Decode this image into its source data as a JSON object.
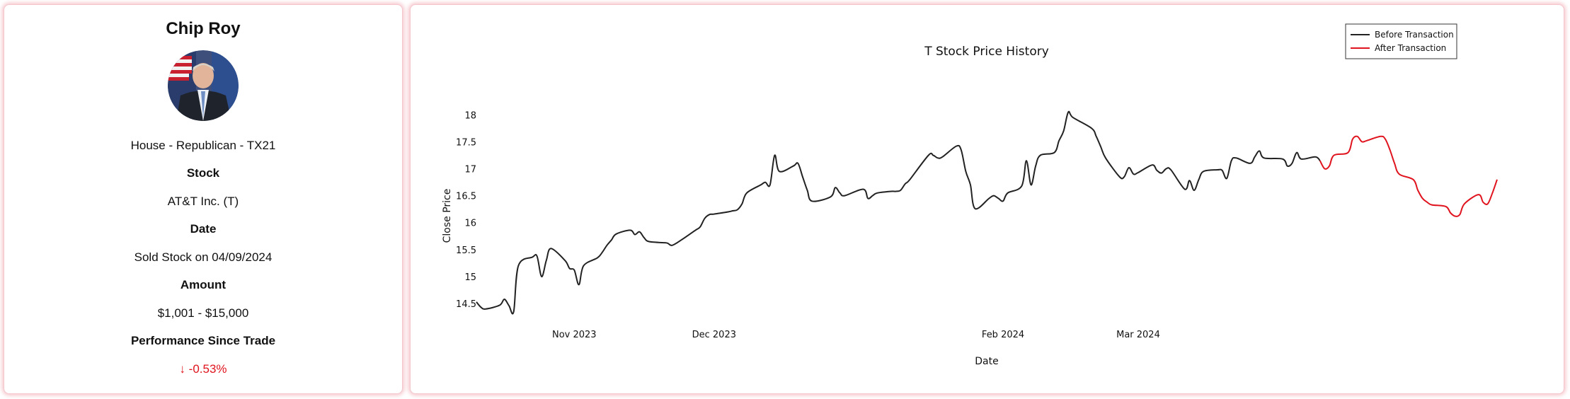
{
  "profile": {
    "name": "Chip Roy",
    "affiliation": "House - Republican - TX21",
    "stock_heading": "Stock",
    "stock_value": "AT&T Inc. (T)",
    "date_heading": "Date",
    "date_value": "Sold Stock on 04/09/2024",
    "amount_heading": "Amount",
    "amount_value": "$1,001 - $15,000",
    "performance_heading": "Performance Since Trade",
    "performance_value": "↓ -0.53%",
    "performance_color": "#e0141e"
  },
  "chart_data": {
    "type": "line",
    "title": "T Stock Price History",
    "xlabel": "Date",
    "ylabel": "Close Price",
    "ylim": [
      14.37,
      18.24
    ],
    "yticks": [
      14.5,
      15,
      15.5,
      16,
      16.5,
      17,
      17.5,
      18
    ],
    "xticks": [
      {
        "label": "Nov 2023",
        "date": "2023-11-01"
      },
      {
        "label": "Dec 2023",
        "date": "2023-12-01"
      },
      {
        "label": "Feb 2024",
        "date": "2024-02-01"
      },
      {
        "label": "Mar 2024",
        "date": "2024-03-01"
      }
    ],
    "grid": false,
    "legend_position": "top-right",
    "series": [
      {
        "name": "Before Transaction",
        "color": "#222222",
        "points": [
          [
            "2023-10-11",
            14.53
          ],
          [
            "2023-10-12",
            14.43
          ],
          [
            "2023-10-13",
            14.4
          ],
          [
            "2023-10-16",
            14.47
          ],
          [
            "2023-10-17",
            14.58
          ],
          [
            "2023-10-18",
            14.46
          ],
          [
            "2023-10-19",
            14.35
          ],
          [
            "2023-10-20",
            15.2
          ],
          [
            "2023-10-23",
            15.36
          ],
          [
            "2023-10-24",
            15.38
          ],
          [
            "2023-10-25",
            15.0
          ],
          [
            "2023-10-26",
            15.3
          ],
          [
            "2023-10-27",
            15.52
          ],
          [
            "2023-10-30",
            15.3
          ],
          [
            "2023-10-31",
            15.15
          ],
          [
            "2023-11-01",
            15.12
          ],
          [
            "2023-11-02",
            14.85
          ],
          [
            "2023-11-03",
            15.2
          ],
          [
            "2023-11-06",
            15.35
          ],
          [
            "2023-11-07",
            15.45
          ],
          [
            "2023-11-08",
            15.58
          ],
          [
            "2023-11-09",
            15.68
          ],
          [
            "2023-11-10",
            15.79
          ],
          [
            "2023-11-13",
            15.86
          ],
          [
            "2023-11-14",
            15.78
          ],
          [
            "2023-11-15",
            15.83
          ],
          [
            "2023-11-16",
            15.72
          ],
          [
            "2023-11-17",
            15.65
          ],
          [
            "2023-11-20",
            15.63
          ],
          [
            "2023-11-21",
            15.62
          ],
          [
            "2023-11-22",
            15.58
          ],
          [
            "2023-11-24",
            15.68
          ],
          [
            "2023-11-27",
            15.86
          ],
          [
            "2023-11-28",
            15.92
          ],
          [
            "2023-11-29",
            16.08
          ],
          [
            "2023-11-30",
            16.15
          ],
          [
            "2023-12-01",
            16.16
          ],
          [
            "2023-12-04",
            16.2
          ],
          [
            "2023-12-05",
            16.22
          ],
          [
            "2023-12-06",
            16.24
          ],
          [
            "2023-12-07",
            16.35
          ],
          [
            "2023-12-08",
            16.55
          ],
          [
            "2023-12-11",
            16.7
          ],
          [
            "2023-12-12",
            16.75
          ],
          [
            "2023-12-13",
            16.7
          ],
          [
            "2023-12-14",
            17.25
          ],
          [
            "2023-12-15",
            16.95
          ],
          [
            "2023-12-18",
            17.05
          ],
          [
            "2023-12-19",
            17.1
          ],
          [
            "2023-12-20",
            16.85
          ],
          [
            "2023-12-21",
            16.6
          ],
          [
            "2023-12-22",
            16.4
          ],
          [
            "2023-12-26",
            16.48
          ],
          [
            "2023-12-27",
            16.65
          ],
          [
            "2023-12-28",
            16.55
          ],
          [
            "2023-12-29",
            16.5
          ],
          [
            "2024-01-02",
            16.62
          ],
          [
            "2024-01-03",
            16.45
          ],
          [
            "2024-01-04",
            16.5
          ],
          [
            "2024-01-05",
            16.55
          ],
          [
            "2024-01-08",
            16.58
          ],
          [
            "2024-01-09",
            16.58
          ],
          [
            "2024-01-10",
            16.6
          ],
          [
            "2024-01-11",
            16.72
          ],
          [
            "2024-01-12",
            16.8
          ],
          [
            "2024-01-16",
            17.25
          ],
          [
            "2024-01-17",
            17.25
          ],
          [
            "2024-01-18",
            17.2
          ],
          [
            "2024-01-19",
            17.22
          ],
          [
            "2024-01-22",
            17.42
          ],
          [
            "2024-01-23",
            17.35
          ],
          [
            "2024-01-24",
            16.95
          ],
          [
            "2024-01-25",
            16.7
          ],
          [
            "2024-01-26",
            16.26
          ],
          [
            "2024-01-29",
            16.45
          ],
          [
            "2024-01-30",
            16.5
          ],
          [
            "2024-01-31",
            16.45
          ],
          [
            "2024-02-01",
            16.4
          ],
          [
            "2024-02-02",
            16.55
          ],
          [
            "2024-02-05",
            16.68
          ],
          [
            "2024-02-06",
            17.15
          ],
          [
            "2024-02-07",
            16.7
          ],
          [
            "2024-02-08",
            17.05
          ],
          [
            "2024-02-09",
            17.25
          ],
          [
            "2024-02-12",
            17.3
          ],
          [
            "2024-02-13",
            17.52
          ],
          [
            "2024-02-14",
            17.7
          ],
          [
            "2024-02-15",
            18.05
          ],
          [
            "2024-02-16",
            17.95
          ],
          [
            "2024-02-20",
            17.75
          ],
          [
            "2024-02-21",
            17.6
          ],
          [
            "2024-02-22",
            17.4
          ],
          [
            "2024-02-23",
            17.2
          ],
          [
            "2024-02-26",
            16.85
          ],
          [
            "2024-02-27",
            16.85
          ],
          [
            "2024-02-28",
            17.02
          ],
          [
            "2024-02-29",
            16.9
          ],
          [
            "2024-03-01",
            16.93
          ],
          [
            "2024-03-04",
            17.07
          ],
          [
            "2024-03-05",
            16.97
          ],
          [
            "2024-03-06",
            16.92
          ],
          [
            "2024-03-07",
            17.0
          ],
          [
            "2024-03-08",
            16.98
          ],
          [
            "2024-03-11",
            16.62
          ],
          [
            "2024-03-12",
            16.78
          ],
          [
            "2024-03-13",
            16.6
          ],
          [
            "2024-03-14",
            16.8
          ],
          [
            "2024-03-15",
            16.95
          ],
          [
            "2024-03-18",
            16.98
          ],
          [
            "2024-03-19",
            16.97
          ],
          [
            "2024-03-20",
            16.82
          ],
          [
            "2024-03-21",
            17.15
          ],
          [
            "2024-03-22",
            17.2
          ],
          [
            "2024-03-25",
            17.1
          ],
          [
            "2024-03-26",
            17.22
          ],
          [
            "2024-03-27",
            17.33
          ],
          [
            "2024-03-28",
            17.2
          ],
          [
            "2024-04-01",
            17.18
          ],
          [
            "2024-04-02",
            17.05
          ],
          [
            "2024-04-03",
            17.1
          ],
          [
            "2024-04-04",
            17.3
          ],
          [
            "2024-04-05",
            17.18
          ],
          [
            "2024-04-08",
            17.22
          ],
          [
            "2024-04-09",
            17.15
          ]
        ]
      },
      {
        "name": "After Transaction",
        "color": "#e0141e",
        "points": [
          [
            "2024-04-09",
            17.15
          ],
          [
            "2024-04-10",
            17.0
          ],
          [
            "2024-04-11",
            17.05
          ],
          [
            "2024-04-12",
            17.25
          ],
          [
            "2024-04-15",
            17.3
          ],
          [
            "2024-04-16",
            17.55
          ],
          [
            "2024-04-17",
            17.6
          ],
          [
            "2024-04-18",
            17.5
          ],
          [
            "2024-04-19",
            17.52
          ],
          [
            "2024-04-22",
            17.6
          ],
          [
            "2024-04-23",
            17.55
          ],
          [
            "2024-04-24",
            17.35
          ],
          [
            "2024-04-25",
            17.1
          ],
          [
            "2024-04-26",
            16.9
          ],
          [
            "2024-04-29",
            16.8
          ],
          [
            "2024-04-30",
            16.6
          ],
          [
            "2024-05-01",
            16.45
          ],
          [
            "2024-05-02",
            16.38
          ],
          [
            "2024-05-03",
            16.33
          ],
          [
            "2024-05-06",
            16.3
          ],
          [
            "2024-05-07",
            16.18
          ],
          [
            "2024-05-08",
            16.12
          ],
          [
            "2024-05-09",
            16.15
          ],
          [
            "2024-05-10",
            16.35
          ],
          [
            "2024-05-13",
            16.52
          ],
          [
            "2024-05-14",
            16.38
          ],
          [
            "2024-05-15",
            16.35
          ],
          [
            "2024-05-16",
            16.55
          ],
          [
            "2024-05-17",
            16.8
          ]
        ]
      }
    ]
  }
}
